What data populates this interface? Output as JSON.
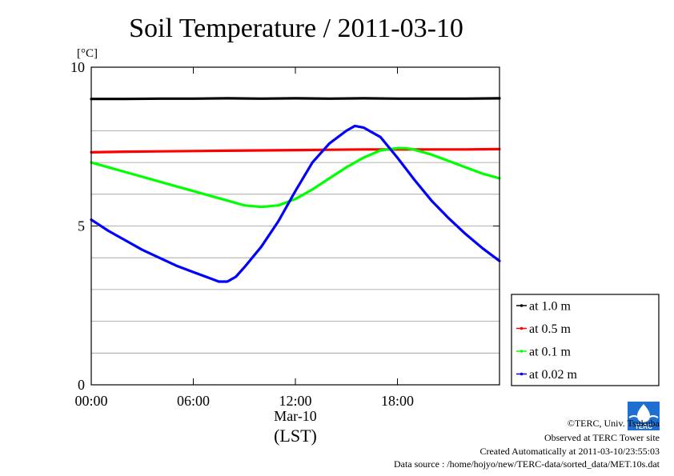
{
  "chart_data": {
    "type": "line",
    "title": "Soil Temperature / 2011-03-10",
    "ylabel": "[°C]",
    "xlabel": "(LST)",
    "xlabel_sub": "Mar-10",
    "xlim": [
      0,
      24
    ],
    "ylim": [
      0,
      10
    ],
    "x_ticks": [
      0,
      6,
      12,
      18
    ],
    "x_tick_labels": [
      "00:00",
      "06:00",
      "12:00",
      "18:00"
    ],
    "y_ticks": [
      0,
      5,
      10
    ],
    "y_tick_labels": [
      "0",
      "5",
      "10"
    ],
    "y_gridlines": [
      1,
      2,
      3,
      4,
      5,
      6,
      7,
      8,
      9
    ],
    "grid": true,
    "legend_position": "right",
    "series": [
      {
        "name": "at 1.0 m",
        "color": "#000000",
        "x": [
          0,
          2,
          4,
          6,
          8,
          10,
          12,
          14,
          16,
          18,
          20,
          22,
          24
        ],
        "y": [
          9.0,
          9.0,
          9.01,
          9.01,
          9.02,
          9.01,
          9.02,
          9.01,
          9.02,
          9.01,
          9.01,
          9.01,
          9.02
        ]
      },
      {
        "name": "at 0.5 m",
        "color": "#ff0000",
        "x": [
          0,
          2,
          4,
          6,
          8,
          10,
          12,
          14,
          16,
          18,
          20,
          22,
          24
        ],
        "y": [
          7.32,
          7.34,
          7.35,
          7.36,
          7.37,
          7.38,
          7.39,
          7.4,
          7.41,
          7.41,
          7.41,
          7.41,
          7.42
        ]
      },
      {
        "name": "at 0.1 m",
        "color": "#00ff00",
        "x": [
          0,
          1,
          2,
          3,
          4,
          5,
          6,
          7,
          8,
          9,
          10,
          11,
          12,
          13,
          14,
          15,
          16,
          17,
          18,
          18.5,
          19,
          20,
          21,
          22,
          23,
          24
        ],
        "y": [
          7.0,
          6.85,
          6.7,
          6.55,
          6.4,
          6.25,
          6.1,
          5.95,
          5.8,
          5.65,
          5.6,
          5.65,
          5.85,
          6.15,
          6.5,
          6.85,
          7.15,
          7.38,
          7.45,
          7.45,
          7.4,
          7.25,
          7.05,
          6.85,
          6.65,
          6.5
        ]
      },
      {
        "name": "at 0.02 m",
        "color": "#0000ff",
        "x": [
          0,
          1,
          2,
          3,
          4,
          5,
          6,
          7,
          7.5,
          8,
          8.5,
          9,
          10,
          11,
          12,
          13,
          14,
          15,
          15.5,
          16,
          17,
          18,
          19,
          20,
          21,
          22,
          23,
          24
        ],
        "y": [
          5.2,
          4.85,
          4.55,
          4.25,
          4.0,
          3.75,
          3.55,
          3.35,
          3.25,
          3.25,
          3.4,
          3.7,
          4.35,
          5.15,
          6.1,
          7.0,
          7.6,
          8.0,
          8.15,
          8.1,
          7.8,
          7.15,
          6.45,
          5.8,
          5.25,
          4.75,
          4.3,
          3.9
        ]
      }
    ]
  },
  "footer": {
    "copyright": "©TERC, Univ. Tsukuba",
    "observed": "Observed at TERC Tower site",
    "created": "Created Automatically at 2011-03-10/23:55:03",
    "source": "Data source : /home/hojyo/new/TERC-data/sorted_data/MET.10s.dat"
  },
  "logo": {
    "text": "TERC",
    "color": "#1e6fd0"
  }
}
